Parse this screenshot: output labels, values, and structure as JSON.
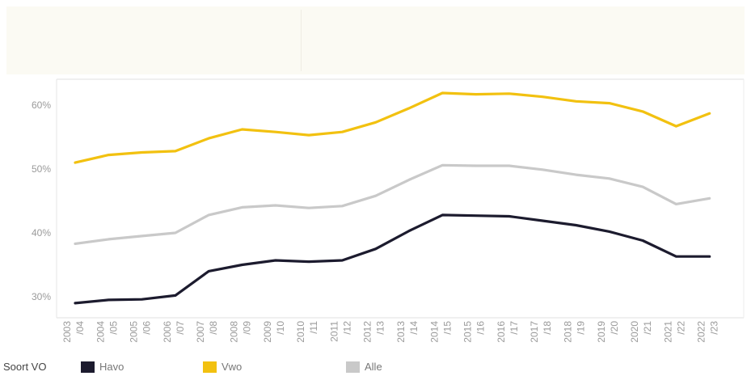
{
  "chart_data": {
    "type": "line",
    "x": [
      "2003 /04",
      "2004 /05",
      "2005 /06",
      "2006 /07",
      "2007 /08",
      "2008 /09",
      "2009 /10",
      "2010 /11",
      "2011 /12",
      "2012 /13",
      "2013 /14",
      "2014 /15",
      "2015 /16",
      "2016 /17",
      "2017 /18",
      "2018 /19",
      "2019 /20",
      "2020 /21",
      "2021 /22",
      "2022 /23"
    ],
    "ylim": [
      28,
      64
    ],
    "yticks": [
      30,
      40,
      50,
      60
    ],
    "ytick_labels": [
      "30%",
      "40%",
      "50%",
      "60%"
    ],
    "grid": false,
    "legend": {
      "title": "Soort VO",
      "position": "bottom-left"
    },
    "series": [
      {
        "name": "Havo",
        "color": "#1c1b2e",
        "values": [
          29.0,
          29.5,
          29.6,
          30.2,
          34.0,
          35.0,
          35.7,
          35.5,
          35.7,
          37.5,
          40.3,
          42.8,
          42.7,
          42.6,
          41.9,
          41.2,
          40.2,
          38.8,
          36.3,
          36.3
        ]
      },
      {
        "name": "Vwo",
        "color": "#f2c110",
        "values": [
          51.0,
          52.2,
          52.6,
          52.8,
          54.8,
          56.2,
          55.8,
          55.3,
          55.8,
          57.3,
          59.5,
          61.9,
          61.7,
          61.8,
          61.3,
          60.6,
          60.3,
          59.0,
          56.7,
          58.7
        ]
      },
      {
        "name": "Alle",
        "color": "#c9c9c9",
        "values": [
          38.3,
          39.0,
          39.5,
          40.0,
          42.8,
          44.0,
          44.3,
          43.9,
          44.2,
          45.8,
          48.3,
          50.6,
          50.5,
          50.5,
          49.9,
          49.1,
          48.5,
          47.2,
          44.5,
          45.4
        ]
      }
    ]
  }
}
